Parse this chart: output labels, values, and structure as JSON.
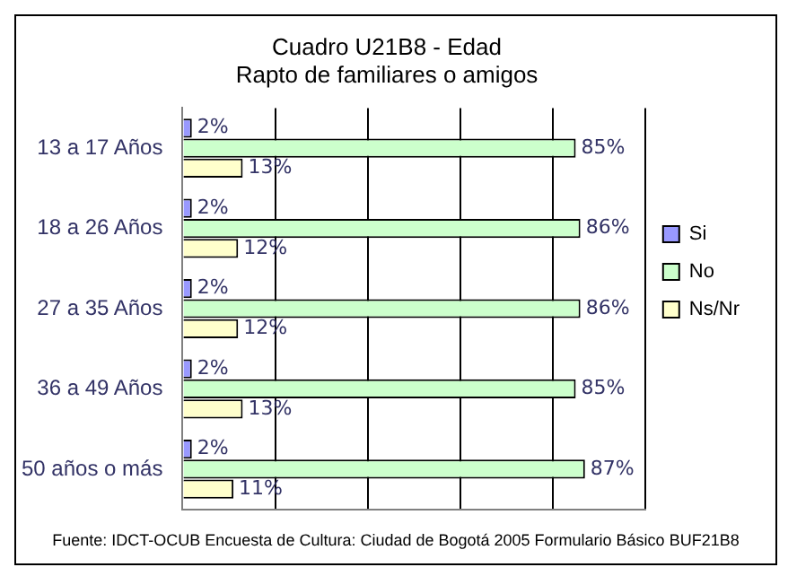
{
  "chart_data": {
    "type": "bar",
    "orientation": "horizontal",
    "title": [
      "Cuadro U21B8 - Edad",
      "Rapto de familiares o amigos"
    ],
    "categories": [
      "13 a 17 Años",
      "18 a 26 Años",
      "27 a 35 Años",
      "36 a 49 Años",
      "50 años o más"
    ],
    "series": [
      {
        "name": "Si",
        "color": "#9999ff",
        "values": [
          2,
          2,
          2,
          2,
          2
        ],
        "value_labels": [
          "2%",
          "2%",
          "2%",
          "2%",
          "2%"
        ]
      },
      {
        "name": "No",
        "color": "#ccffcc",
        "values": [
          85,
          86,
          86,
          85,
          87
        ],
        "value_labels": [
          "85%",
          "86%",
          "86%",
          "85%",
          "87%"
        ]
      },
      {
        "name": "Ns/Nr",
        "color": "#ffffcc",
        "values": [
          13,
          12,
          12,
          13,
          11
        ],
        "value_labels": [
          "13%",
          "12%",
          "12%",
          "13%",
          "11%"
        ]
      }
    ],
    "grid": "x",
    "legend": "right",
    "tick_labels": "y",
    "annotations": [
      "Fuente: IDCT-OCUB Encuesta de Cultura: Ciudad de Bogotá 2005 Formulario Básico BUF21B8"
    ]
  }
}
